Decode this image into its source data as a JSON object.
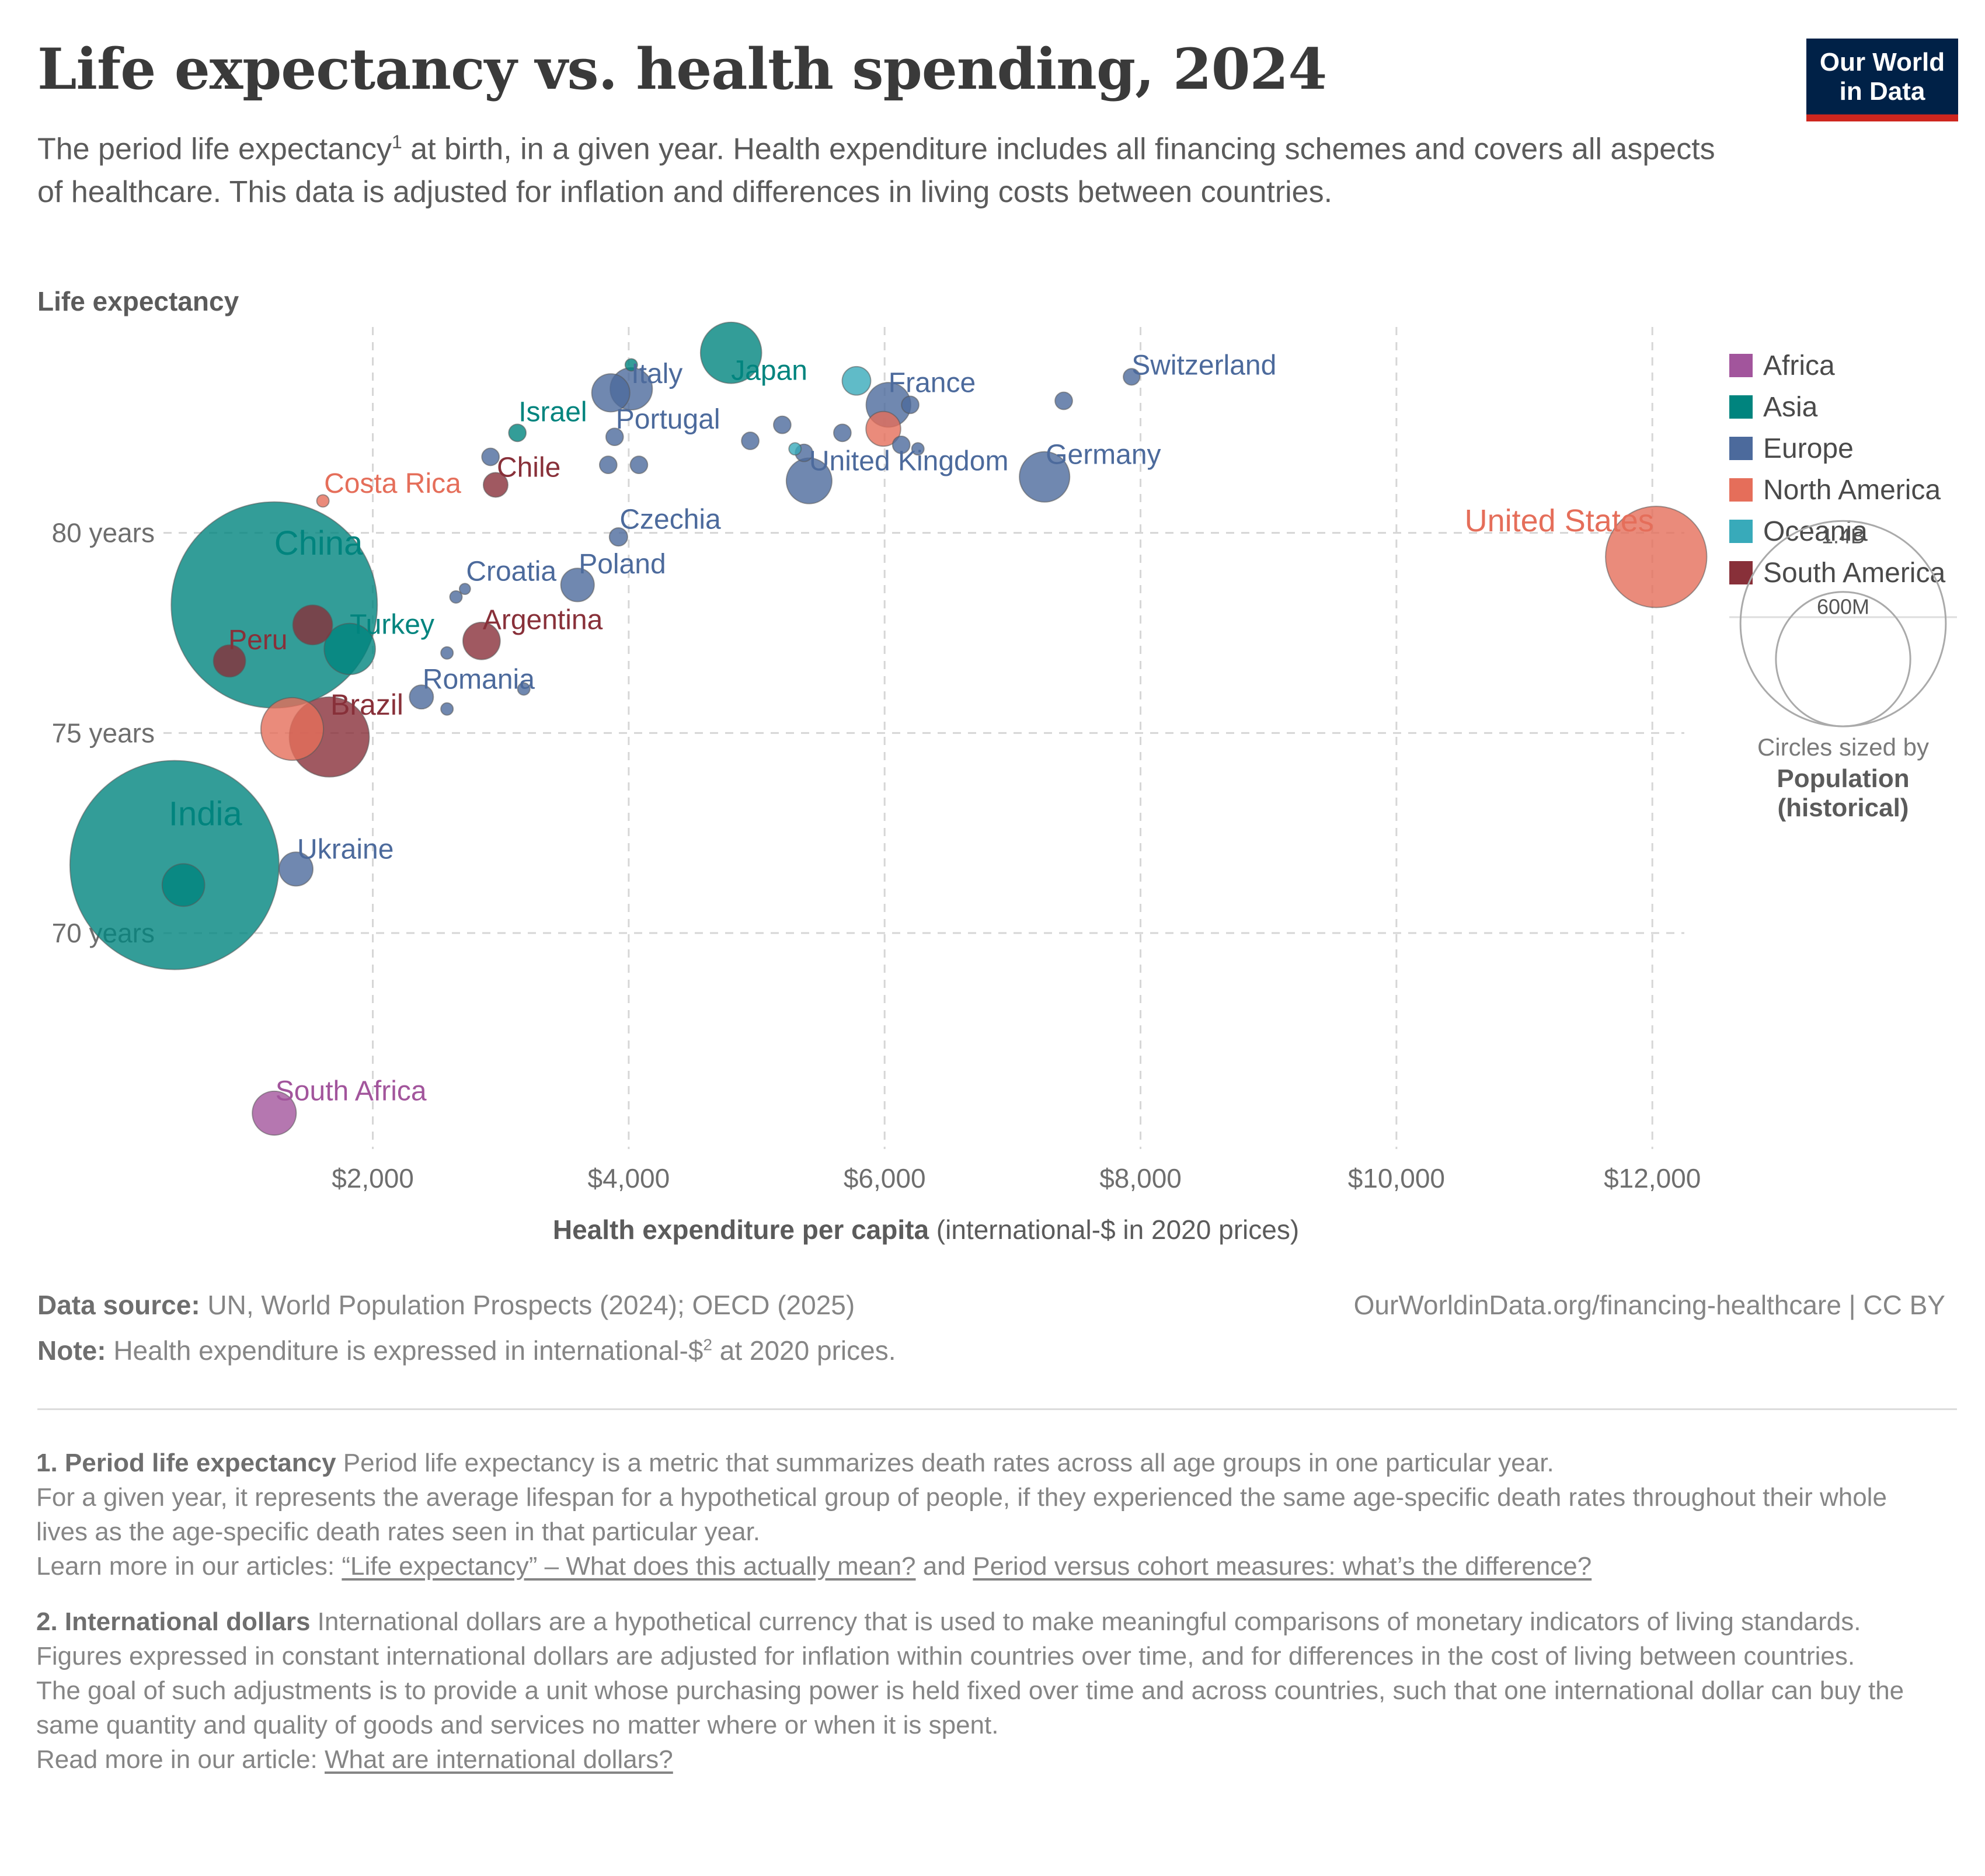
{
  "header": {
    "title": "Life expectancy vs. health spending, 2024",
    "subtitle_a": "The period life expectancy",
    "subtitle_sup": "1",
    "subtitle_b": " at birth, in a given year. Health expenditure includes all financing schemes and covers all aspects of healthcare. This data is adjusted for inflation and differences in living costs between countries.",
    "logo_line1": "Our World",
    "logo_line2": "in Data"
  },
  "colors": {
    "Africa": "#a2559c",
    "Asia": "#00847e",
    "Europe": "#4c6a9c",
    "North America": "#e56e5a",
    "Oceania": "#38aaba",
    "South America": "#883039"
  },
  "chart_data": {
    "type": "scatter",
    "ylabel": "Life expectancy",
    "xlabel_bold": "Health expenditure per capita",
    "xlabel_rest": " (international-$ in 2020 prices)",
    "x_ticks": [
      {
        "value": 2000,
        "label": "$2,000"
      },
      {
        "value": 4000,
        "label": "$4,000"
      },
      {
        "value": 6000,
        "label": "$6,000"
      },
      {
        "value": 8000,
        "label": "$8,000"
      },
      {
        "value": 10000,
        "label": "$10,000"
      },
      {
        "value": 12000,
        "label": "$12,000"
      }
    ],
    "y_ticks": [
      {
        "value": 70,
        "label": "70 years"
      },
      {
        "value": 75,
        "label": "75 years"
      },
      {
        "value": 80,
        "label": "80 years"
      }
    ],
    "xlim": [
      250,
      12250
    ],
    "ylim": [
      64.5,
      85
    ],
    "grid": true,
    "legend_position": "right",
    "legend": [
      "Africa",
      "Asia",
      "Europe",
      "North America",
      "Oceania",
      "South America"
    ],
    "size_legend": {
      "values": [
        1400,
        600
      ],
      "labels": [
        "1.4B",
        "600M"
      ],
      "caption_1": "Circles sized by",
      "caption_2": "Population",
      "caption_3": "(historical)"
    },
    "points": [
      {
        "name": "India",
        "region": "Asia",
        "x": 450,
        "y": 71.7,
        "pop": 1450,
        "label": "India"
      },
      {
        "name": "",
        "region": "Asia",
        "x": 520,
        "y": 71.2,
        "pop": 60
      },
      {
        "name": "China",
        "region": "Asia",
        "x": 1230,
        "y": 78.2,
        "pop": 1410,
        "label": "China"
      },
      {
        "name": "Japan",
        "region": "Asia",
        "x": 4800,
        "y": 84.5,
        "pop": 124,
        "label": "Japan"
      },
      {
        "name": "Turkey",
        "region": "Asia",
        "x": 1820,
        "y": 77.1,
        "pop": 87,
        "label": "Turkey"
      },
      {
        "name": "Israel",
        "region": "Asia",
        "x": 3130,
        "y": 82.5,
        "pop": 10,
        "label": "Israel"
      },
      {
        "name": "",
        "region": "Asia",
        "x": 4020,
        "y": 84.2,
        "pop": 5
      },
      {
        "name": "United States",
        "region": "North America",
        "x": 12030,
        "y": 79.4,
        "pop": 340,
        "label": "United States"
      },
      {
        "name": "",
        "region": "North America",
        "x": 1370,
        "y": 75.1,
        "pop": 130
      },
      {
        "name": "Costa Rica",
        "region": "North America",
        "x": 1610,
        "y": 80.8,
        "pop": 5,
        "label": "Costa Rica"
      },
      {
        "name": "",
        "region": "North America",
        "x": 5990,
        "y": 82.6,
        "pop": 40
      },
      {
        "name": "Brazil",
        "region": "South America",
        "x": 1660,
        "y": 74.9,
        "pop": 212,
        "label": "Brazil"
      },
      {
        "name": "Argentina",
        "region": "South America",
        "x": 2850,
        "y": 77.3,
        "pop": 46,
        "label": "Argentina"
      },
      {
        "name": "Peru",
        "region": "South America",
        "x": 880,
        "y": 76.8,
        "pop": 34,
        "label": "Peru"
      },
      {
        "name": "",
        "region": "South America",
        "x": 1530,
        "y": 77.7,
        "pop": 52
      },
      {
        "name": "Chile",
        "region": "South America",
        "x": 2960,
        "y": 81.2,
        "pop": 20,
        "label": "Chile"
      },
      {
        "name": "South Africa",
        "region": "Africa",
        "x": 1230,
        "y": 65.5,
        "pop": 64,
        "label": "South Africa"
      },
      {
        "name": "Oceania-1",
        "region": "Oceania",
        "x": 5780,
        "y": 83.8,
        "pop": 27
      },
      {
        "name": "Oceania-2",
        "region": "Oceania",
        "x": 5300,
        "y": 82.1,
        "pop": 5
      },
      {
        "name": "Italy",
        "region": "Europe",
        "x": 4020,
        "y": 83.6,
        "pop": 59,
        "label": "Italy"
      },
      {
        "name": "",
        "region": "Europe",
        "x": 3860,
        "y": 83.5,
        "pop": 48
      },
      {
        "name": "France",
        "region": "Europe",
        "x": 6030,
        "y": 83.2,
        "pop": 66,
        "label": "France"
      },
      {
        "name": "",
        "region": "Europe",
        "x": 6200,
        "y": 83.2,
        "pop": 10
      },
      {
        "name": "Switzerland",
        "region": "Europe",
        "x": 7930,
        "y": 83.9,
        "pop": 9,
        "label": "Switzerland"
      },
      {
        "name": "",
        "region": "Europe",
        "x": 7400,
        "y": 83.3,
        "pop": 10
      },
      {
        "name": "Portugal",
        "region": "Europe",
        "x": 3890,
        "y": 82.4,
        "pop": 10,
        "label": "Portugal"
      },
      {
        "name": "",
        "region": "Europe",
        "x": 5200,
        "y": 82.7,
        "pop": 10
      },
      {
        "name": "",
        "region": "Europe",
        "x": 4950,
        "y": 82.3,
        "pop": 10
      },
      {
        "name": "",
        "region": "Europe",
        "x": 5670,
        "y": 82.5,
        "pop": 10
      },
      {
        "name": "",
        "region": "Europe",
        "x": 6130,
        "y": 82.2,
        "pop": 10
      },
      {
        "name": "",
        "region": "Europe",
        "x": 6260,
        "y": 82.1,
        "pop": 5
      },
      {
        "name": "",
        "region": "Europe",
        "x": 5370,
        "y": 82.0,
        "pop": 10
      },
      {
        "name": "",
        "region": "Europe",
        "x": 2920,
        "y": 81.9,
        "pop": 10
      },
      {
        "name": "",
        "region": "Europe",
        "x": 3840,
        "y": 81.7,
        "pop": 10
      },
      {
        "name": "",
        "region": "Europe",
        "x": 4080,
        "y": 81.7,
        "pop": 10
      },
      {
        "name": "United Kingdom",
        "region": "Europe",
        "x": 5410,
        "y": 81.3,
        "pop": 69,
        "label": "United Kingdom"
      },
      {
        "name": "Germany",
        "region": "Europe",
        "x": 7250,
        "y": 81.4,
        "pop": 84,
        "label": "Germany"
      },
      {
        "name": "Czechia",
        "region": "Europe",
        "x": 3920,
        "y": 79.9,
        "pop": 11,
        "label": "Czechia"
      },
      {
        "name": "Croatia",
        "region": "Europe",
        "x": 2720,
        "y": 78.6,
        "pop": 4,
        "label": "Croatia"
      },
      {
        "name": "",
        "region": "Europe",
        "x": 2650,
        "y": 78.4,
        "pop": 5
      },
      {
        "name": "Poland",
        "region": "Europe",
        "x": 3600,
        "y": 78.7,
        "pop": 37,
        "label": "Poland"
      },
      {
        "name": "",
        "region": "Europe",
        "x": 2580,
        "y": 77.0,
        "pop": 5
      },
      {
        "name": "Romania",
        "region": "Europe",
        "x": 2380,
        "y": 75.9,
        "pop": 19,
        "label": "Romania"
      },
      {
        "name": "",
        "region": "Europe",
        "x": 2580,
        "y": 75.6,
        "pop": 5
      },
      {
        "name": "",
        "region": "Europe",
        "x": 3180,
        "y": 76.1,
        "pop": 5
      },
      {
        "name": "Ukraine",
        "region": "Europe",
        "x": 1400,
        "y": 71.6,
        "pop": 38,
        "label": "Ukraine"
      }
    ]
  },
  "footer": {
    "source_label": "Data source:",
    "source_text": " UN, World Population Prospects (2024); OECD (2025)",
    "url": "OurWorldinData.org/financing-healthcare | CC BY",
    "note_label": "Note:",
    "note_text_a": " Health expenditure is expressed in international-$",
    "note_sup": "2",
    "note_text_b": " at 2020 prices.",
    "fn1_title": "1. Period life expectancy",
    "fn1_p1": " Period life expectancy is a metric that summarizes death rates across all age groups in one particular year.",
    "fn1_p2": "For a given year, it represents the average lifespan for a hypothetical group of people, if they experienced the same age-specific death rates throughout their whole lives as the age-specific death rates seen in that particular year.",
    "fn1_p3a": "Learn more in our articles: ",
    "fn1_link1": "“Life expectancy” – What does this actually mean?",
    "fn1_p3b": " and ",
    "fn1_link2": "Period versus cohort measures: what’s the difference?",
    "fn2_title": "2. International dollars",
    "fn2_p1": " International dollars are a hypothetical currency that is used to make meaningful comparisons of monetary indicators of living standards.",
    "fn2_p2": "Figures expressed in constant international dollars are adjusted for inflation within countries over time, and for differences in the cost of living between countries.",
    "fn2_p3": "The goal of such adjustments is to provide a unit whose purchasing power is held fixed over time and across countries, such that one international dollar can buy the same quantity and quality of goods and services no matter where or when it is spent.",
    "fn2_p4a": "Read more in our article: ",
    "fn2_link": "What are international dollars?"
  }
}
